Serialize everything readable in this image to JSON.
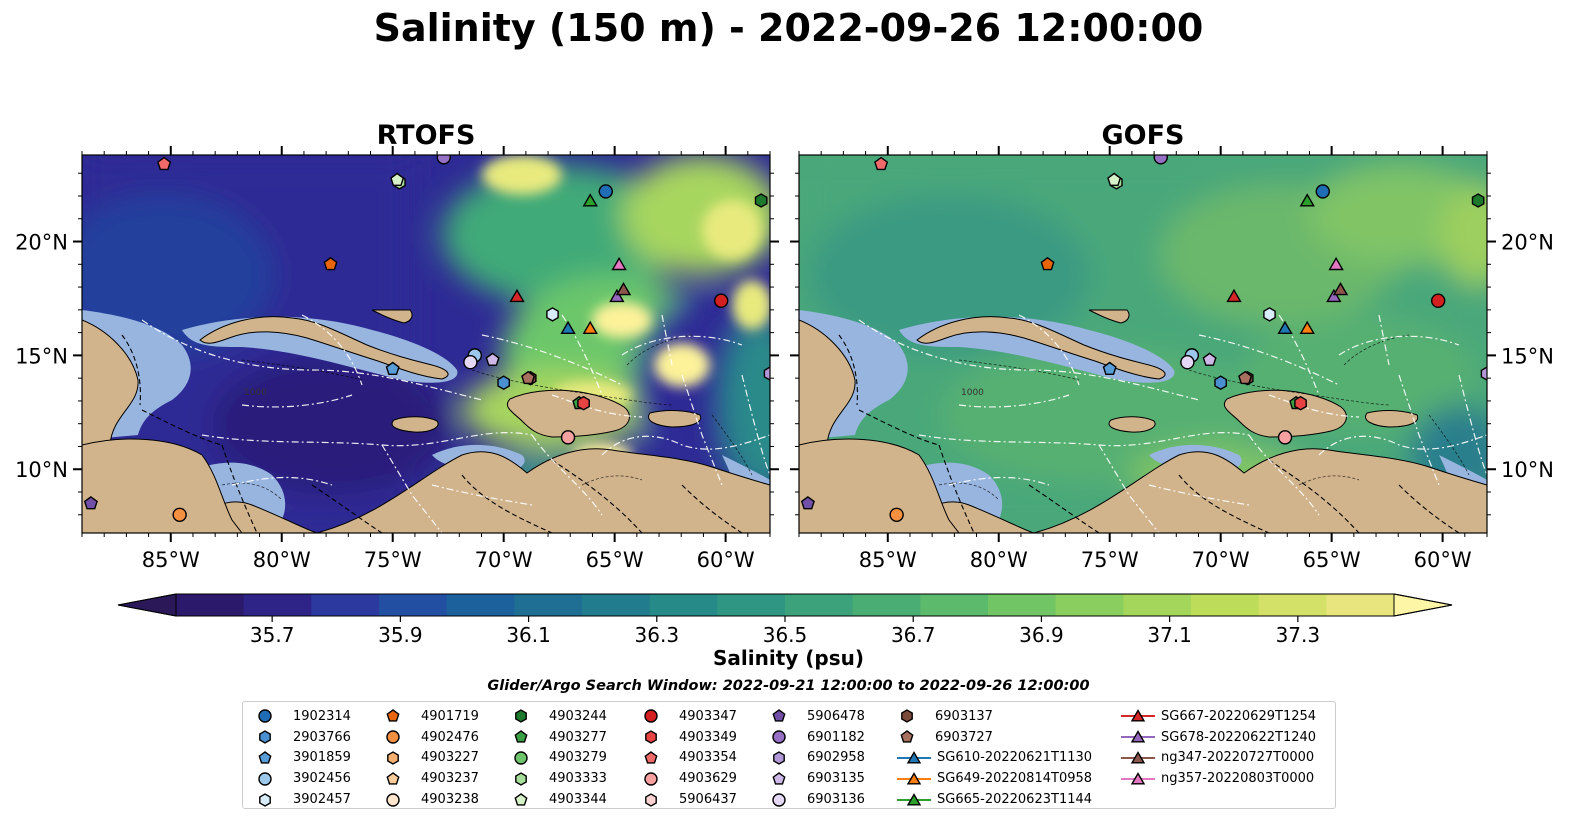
{
  "title": "Salinity (150 m) - 2022-09-26 12:00:00",
  "panels": [
    {
      "title": "RTOFS",
      "field_colors": [
        "#2a1f7a",
        "#2e2a95",
        "#233f9c",
        "#1b5e8e",
        "#2a8a8a",
        "#3faa78",
        "#6cc76a",
        "#a7d65f",
        "#e8ea7e",
        "#fdf29a"
      ]
    },
    {
      "title": "GOFS",
      "field_colors": [
        "#2a1f7a",
        "#2a7f8c",
        "#3a9a82",
        "#4aa77a",
        "#57b072",
        "#6ab86c",
        "#80c466",
        "#9ccf5f"
      ]
    }
  ],
  "map": {
    "land_color": "#d2b48c",
    "shelf_color": "#98b5e0",
    "lon_ticks": [
      "85°W",
      "80°W",
      "75°W",
      "70°W",
      "65°W",
      "60°W"
    ],
    "lat_ticks": [
      "20°N",
      "15°N",
      "10°N"
    ],
    "lon_range": [
      -89,
      -58
    ],
    "lat_range": [
      7.2,
      23.8
    ],
    "contour_label": "1000"
  },
  "colorbar": {
    "label": "Salinity (psu)",
    "ticks": [
      "35.7",
      "35.9",
      "36.1",
      "36.3",
      "36.5",
      "36.7",
      "36.9",
      "37.1",
      "37.3"
    ],
    "min": 35.55,
    "max": 37.45,
    "colors": [
      "#2b1a6b",
      "#2e2488",
      "#2c3a9f",
      "#234fa3",
      "#1c619b",
      "#1e6f93",
      "#217c8d",
      "#268a88",
      "#2e9682",
      "#3ba27c",
      "#4aae74",
      "#5cba6c",
      "#72c564",
      "#89ce5e",
      "#a3d65a",
      "#bcdc5a",
      "#d3e168",
      "#e8e57e"
    ],
    "under_color": "#2a1859",
    "over_color": "#fdf6a6"
  },
  "search_window": "Glider/Argo Search Window: 2022-09-21 12:00:00 to 2022-09-26 12:00:00",
  "legend": [
    {
      "label": "1902314",
      "marker": "circle",
      "color": "#1f6db5"
    },
    {
      "label": "2903766",
      "marker": "hexagon",
      "color": "#4a8fcf"
    },
    {
      "label": "3901859",
      "marker": "pentagon",
      "color": "#5a9ed8"
    },
    {
      "label": "3902456",
      "marker": "circle",
      "color": "#9cc8ec"
    },
    {
      "label": "3902457",
      "marker": "hexagon",
      "color": "#d8ecfa"
    },
    {
      "label": "4901719",
      "marker": "pentagon",
      "color": "#e8650a"
    },
    {
      "label": "4902476",
      "marker": "circle",
      "color": "#f59040"
    },
    {
      "label": "4903227",
      "marker": "hexagon",
      "color": "#f8b070"
    },
    {
      "label": "4903237",
      "marker": "pentagon",
      "color": "#fbcc9a"
    },
    {
      "label": "4903238",
      "marker": "circle",
      "color": "#fde6cc"
    },
    {
      "label": "4903244",
      "marker": "hexagon",
      "color": "#1d7a2d"
    },
    {
      "label": "4903277",
      "marker": "pentagon",
      "color": "#3aa043"
    },
    {
      "label": "4903279",
      "marker": "circle",
      "color": "#6ec46a"
    },
    {
      "label": "4903333",
      "marker": "hexagon",
      "color": "#a6dd98"
    },
    {
      "label": "4903344",
      "marker": "pentagon",
      "color": "#d6f2c8"
    },
    {
      "label": "4903347",
      "marker": "circle",
      "color": "#d42020"
    },
    {
      "label": "4903349",
      "marker": "hexagon",
      "color": "#e84343"
    },
    {
      "label": "4903354",
      "marker": "pentagon",
      "color": "#f06a6a"
    },
    {
      "label": "4903629",
      "marker": "circle",
      "color": "#f7a0a0"
    },
    {
      "label": "5906437",
      "marker": "hexagon",
      "color": "#fcd2d2"
    },
    {
      "label": "5906478",
      "marker": "pentagon",
      "color": "#7350a8"
    },
    {
      "label": "6901182",
      "marker": "circle",
      "color": "#9670c4"
    },
    {
      "label": "6902958",
      "marker": "hexagon",
      "color": "#b298d8"
    },
    {
      "label": "6903135",
      "marker": "pentagon",
      "color": "#cdb8e8"
    },
    {
      "label": "6903136",
      "marker": "circle",
      "color": "#e4d8f4"
    },
    {
      "label": "6903137",
      "marker": "hexagon",
      "color": "#7b4a3a"
    },
    {
      "label": "6903727",
      "marker": "pentagon",
      "color": "#a8705e"
    },
    {
      "label": "SG610-20220621T1130",
      "marker": "triangle",
      "color": "#1f77b4"
    },
    {
      "label": "SG649-20220814T0958",
      "marker": "triangle",
      "color": "#ff7f0e"
    },
    {
      "label": "SG665-20220623T1144",
      "marker": "triangle",
      "color": "#2ca02c"
    },
    {
      "label": "SG667-20220629T1254",
      "marker": "triangle",
      "color": "#d62728"
    },
    {
      "label": "SG678-20220622T1240",
      "marker": "triangle",
      "color": "#9467bd"
    },
    {
      "label": "ng347-20220727T0000",
      "marker": "triangle",
      "color": "#8c564b"
    },
    {
      "label": "ng357-20220803T0000",
      "marker": "triangle",
      "color": "#e377c2"
    }
  ],
  "platform_positions": [
    {
      "id": "1902314",
      "lon": -65.4,
      "lat": 22.2
    },
    {
      "id": "2903766",
      "lon": -70.0,
      "lat": 13.8
    },
    {
      "id": "3901859",
      "lon": -75.0,
      "lat": 14.4
    },
    {
      "id": "3902456",
      "lon": -71.3,
      "lat": 15.0
    },
    {
      "id": "3902457",
      "lon": -67.8,
      "lat": 16.8
    },
    {
      "id": "4901719",
      "lon": -77.8,
      "lat": 19.0
    },
    {
      "id": "4902476",
      "lon": -84.6,
      "lat": 8.0
    },
    {
      "id": "4903244",
      "lon": -58.4,
      "lat": 21.8
    },
    {
      "id": "4903277",
      "lon": -66.6,
      "lat": 12.9
    },
    {
      "id": "4903333",
      "lon": -74.7,
      "lat": 22.6
    },
    {
      "id": "4903344",
      "lon": -74.8,
      "lat": 22.7
    },
    {
      "id": "4903347",
      "lon": -60.2,
      "lat": 17.4
    },
    {
      "id": "4903349",
      "lon": -66.4,
      "lat": 12.9
    },
    {
      "id": "4903354",
      "lon": -85.3,
      "lat": 23.4
    },
    {
      "id": "4903629",
      "lon": -67.1,
      "lat": 11.4
    },
    {
      "id": "5906478",
      "lon": -88.6,
      "lat": 8.5
    },
    {
      "id": "6903135",
      "lon": -70.5,
      "lat": 14.8
    },
    {
      "id": "6903136",
      "lon": -71.5,
      "lat": 14.7
    },
    {
      "id": "6901182",
      "lon": -72.7,
      "lat": 23.7
    },
    {
      "id": "6903137",
      "lon": -68.8,
      "lat": 14.0
    },
    {
      "id": "6903727",
      "lon": -68.9,
      "lat": 14.0
    },
    {
      "id": "6902958",
      "lon": -58.0,
      "lat": 14.2
    },
    {
      "id": "SG610-20220621T1130",
      "lon": -67.1,
      "lat": 16.2
    },
    {
      "id": "SG649-20220814T0958",
      "lon": -66.1,
      "lat": 16.2
    },
    {
      "id": "SG665-20220623T1144",
      "lon": -66.1,
      "lat": 21.8
    },
    {
      "id": "SG667-20220629T1254",
      "lon": -69.4,
      "lat": 17.6
    },
    {
      "id": "SG678-20220622T1240",
      "lon": -64.9,
      "lat": 17.6
    },
    {
      "id": "ng347-20220727T0000",
      "lon": -64.6,
      "lat": 17.9
    },
    {
      "id": "ng357-20220803T0000",
      "lon": -64.8,
      "lat": 19.0
    }
  ]
}
